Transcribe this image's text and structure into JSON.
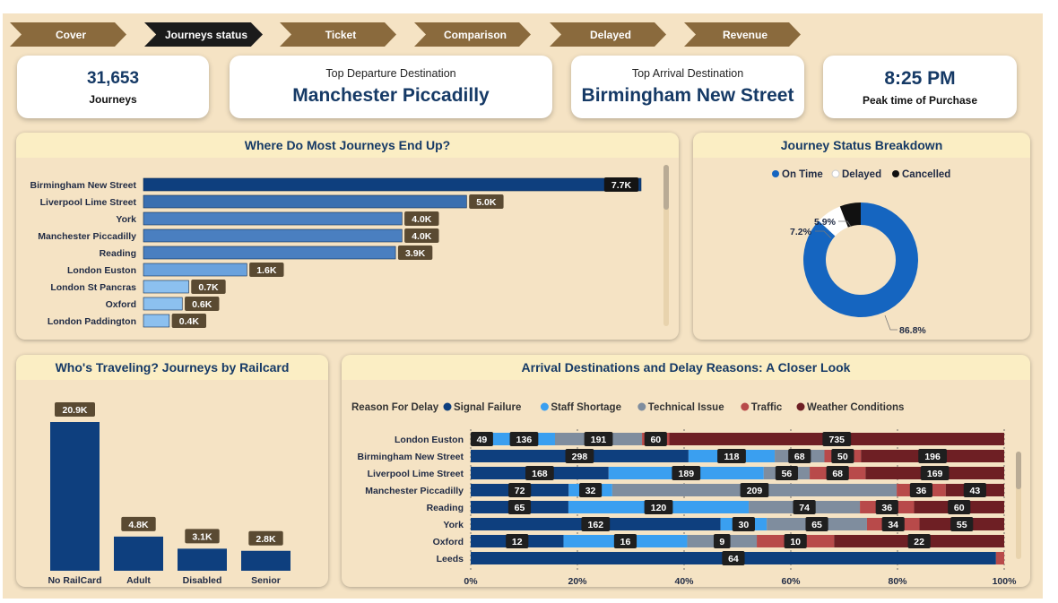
{
  "nav": {
    "tabs": [
      {
        "label": "Cover",
        "active": false
      },
      {
        "label": "Journeys status",
        "active": true
      },
      {
        "label": "Ticket",
        "active": false
      },
      {
        "label": "Comparison",
        "active": false
      },
      {
        "label": "Delayed",
        "active": false
      },
      {
        "label": "Revenue",
        "active": false
      }
    ]
  },
  "kpis": {
    "journeys": {
      "value": "31,653",
      "label": "Journeys"
    },
    "top_departure": {
      "title": "Top Departure Destination",
      "value": "Manchester Piccadilly"
    },
    "top_arrival": {
      "title": "Top Arrival Destination",
      "value": "Birmingham New Street"
    },
    "peak_time": {
      "value": "8:25 PM",
      "label": "Peak time of Purchase"
    }
  },
  "colors": {
    "navy": "#0e3f7e",
    "signal_failure": "#0e3f7e",
    "staff_shortage": "#3a9ff0",
    "technical_issue": "#7f8d9e",
    "traffic": "#b84a4a",
    "weather_conditions": "#6e1f24",
    "on_time": "#1565c0",
    "delayed": "#ffffff",
    "cancelled": "#111111"
  },
  "chart_data": [
    {
      "type": "bar",
      "orientation": "horizontal",
      "title": "Where Do Most Journeys End Up?",
      "categories": [
        "Birmingham New Street",
        "Liverpool Lime Street",
        "York",
        "Manchester Piccadilly",
        "Reading",
        "London Euston",
        "London St Pancras",
        "Oxford",
        "London Paddington"
      ],
      "values": [
        7700,
        5000,
        4000,
        4000,
        3900,
        1600,
        700,
        600,
        400
      ],
      "labels": [
        "7.7K",
        "5.0K",
        "4.0K",
        "4.0K",
        "3.9K",
        "1.6K",
        "0.7K",
        "0.6K",
        "0.4K"
      ],
      "bar_colors": [
        "#0e3f7e",
        "#3a6fb0",
        "#4a7fc0",
        "#4a7fc0",
        "#4a7fc0",
        "#6aa2dd",
        "#8cc0ef",
        "#8cc0ef",
        "#8cc0ef"
      ]
    },
    {
      "type": "pie",
      "subtype": "donut",
      "title": "Journey Status Breakdown",
      "legend": [
        "On Time",
        "Delayed",
        "Cancelled"
      ],
      "values": [
        86.8,
        7.2,
        5.9
      ],
      "labels": [
        "86.8%",
        "7.2%",
        "5.9%"
      ]
    },
    {
      "type": "bar",
      "title": "Who's Traveling? Journeys by Railcard",
      "categories": [
        "No RailCard",
        "Adult",
        "Disabled",
        "Senior"
      ],
      "values": [
        20900,
        4800,
        3100,
        2800
      ],
      "labels": [
        "20.9K",
        "4.8K",
        "3.1K",
        "2.8K"
      ]
    },
    {
      "type": "bar",
      "subtype": "stacked-100-horizontal",
      "title": "Arrival Destinations and Delay Reasons: A Closer Look",
      "legend_title": "Reason For Delay",
      "series_names": [
        "Signal Failure",
        "Staff Shortage",
        "Technical Issue",
        "Traffic",
        "Weather Conditions"
      ],
      "categories": [
        "London Euston",
        "Birmingham New Street",
        "Liverpool Lime Street",
        "Manchester Piccadilly",
        "Reading",
        "York",
        "Oxford",
        "Leeds"
      ],
      "rows": [
        [
          49,
          136,
          191,
          60,
          735
        ],
        [
          298,
          118,
          68,
          50,
          196
        ],
        [
          168,
          189,
          56,
          68,
          169
        ],
        [
          72,
          32,
          209,
          36,
          43
        ],
        [
          65,
          120,
          74,
          36,
          60
        ],
        [
          162,
          30,
          65,
          34,
          55
        ],
        [
          12,
          16,
          9,
          10,
          22
        ],
        [
          64,
          0,
          0,
          1,
          0
        ]
      ],
      "x_ticks": [
        "0%",
        "20%",
        "40%",
        "60%",
        "80%",
        "100%"
      ]
    }
  ]
}
